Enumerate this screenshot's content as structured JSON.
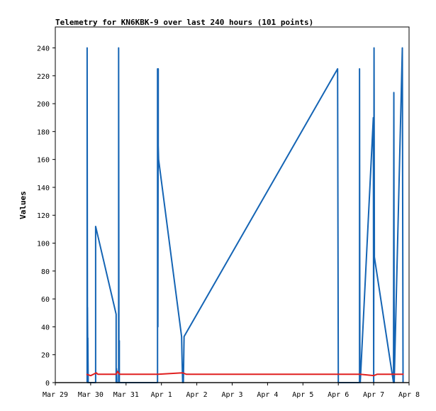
{
  "chart_data": {
    "type": "line",
    "title": "Telemetry for KN6KBK-9 over last 240 hours (101 points)",
    "xlabel": "",
    "ylabel": "Values",
    "xlim": [
      0,
      10
    ],
    "ylim": [
      0,
      255
    ],
    "x_ticks": [
      {
        "value": 0,
        "label": "Mar 29"
      },
      {
        "value": 1,
        "label": "Mar 30"
      },
      {
        "value": 2,
        "label": "Mar 31"
      },
      {
        "value": 3,
        "label": "Apr 1"
      },
      {
        "value": 4,
        "label": "Apr 2"
      },
      {
        "value": 5,
        "label": "Apr 3"
      },
      {
        "value": 6,
        "label": "Apr 4"
      },
      {
        "value": 7,
        "label": "Apr 5"
      },
      {
        "value": 8,
        "label": "Apr 6"
      },
      {
        "value": 9,
        "label": "Apr 7"
      },
      {
        "value": 10,
        "label": "Apr 8"
      }
    ],
    "y_ticks": [
      0,
      20,
      40,
      60,
      80,
      100,
      120,
      140,
      160,
      180,
      200,
      220,
      240
    ],
    "grid": false,
    "series": [
      {
        "color": "#1464b4",
        "points": [
          [
            0.9,
            0
          ],
          [
            0.9,
            240
          ],
          [
            0.91,
            0
          ],
          [
            0.91,
            54
          ],
          [
            0.92,
            10
          ],
          [
            0.92,
            32
          ],
          [
            0.93,
            0
          ],
          [
            1.14,
            0
          ],
          [
            1.14,
            112
          ],
          [
            1.72,
            49
          ],
          [
            1.72,
            0
          ],
          [
            1.73,
            10
          ],
          [
            1.74,
            0
          ],
          [
            1.79,
            0
          ],
          [
            1.79,
            240
          ],
          [
            1.8,
            0
          ],
          [
            1.81,
            30
          ],
          [
            1.81,
            0
          ],
          [
            2.89,
            0
          ],
          [
            2.89,
            225
          ],
          [
            2.9,
            40
          ],
          [
            2.91,
            225
          ],
          [
            2.91,
            170
          ],
          [
            2.92,
            160
          ],
          [
            3.57,
            33
          ],
          [
            3.58,
            20
          ],
          [
            3.6,
            0
          ],
          [
            3.61,
            0
          ],
          [
            3.62,
            0
          ],
          [
            3.64,
            33
          ],
          [
            7.98,
            225
          ],
          [
            7.99,
            112
          ],
          [
            8.0,
            0
          ],
          [
            8.6,
            0
          ],
          [
            8.6,
            225
          ],
          [
            8.61,
            10
          ],
          [
            8.62,
            0
          ],
          [
            8.99,
            190
          ],
          [
            9.0,
            0
          ],
          [
            9.01,
            240
          ],
          [
            9.02,
            90
          ],
          [
            9.56,
            0
          ],
          [
            9.57,
            208
          ],
          [
            9.58,
            0
          ],
          [
            9.81,
            240
          ],
          [
            9.82,
            120
          ],
          [
            9.83,
            0
          ]
        ]
      },
      {
        "color": "#e02020",
        "points": [
          [
            0.88,
            6
          ],
          [
            1.0,
            5
          ],
          [
            1.16,
            7
          ],
          [
            1.2,
            6
          ],
          [
            1.72,
            6
          ],
          [
            1.76,
            8
          ],
          [
            1.82,
            6
          ],
          [
            2.9,
            6
          ],
          [
            3.6,
            7
          ],
          [
            3.7,
            6
          ],
          [
            8.0,
            6
          ],
          [
            8.6,
            6
          ],
          [
            9.0,
            5
          ],
          [
            9.1,
            6
          ],
          [
            9.56,
            6
          ],
          [
            9.85,
            6
          ]
        ]
      },
      {
        "color": "#111111",
        "points": [
          [
            0.0,
            0
          ],
          [
            10.0,
            0
          ]
        ]
      }
    ]
  }
}
